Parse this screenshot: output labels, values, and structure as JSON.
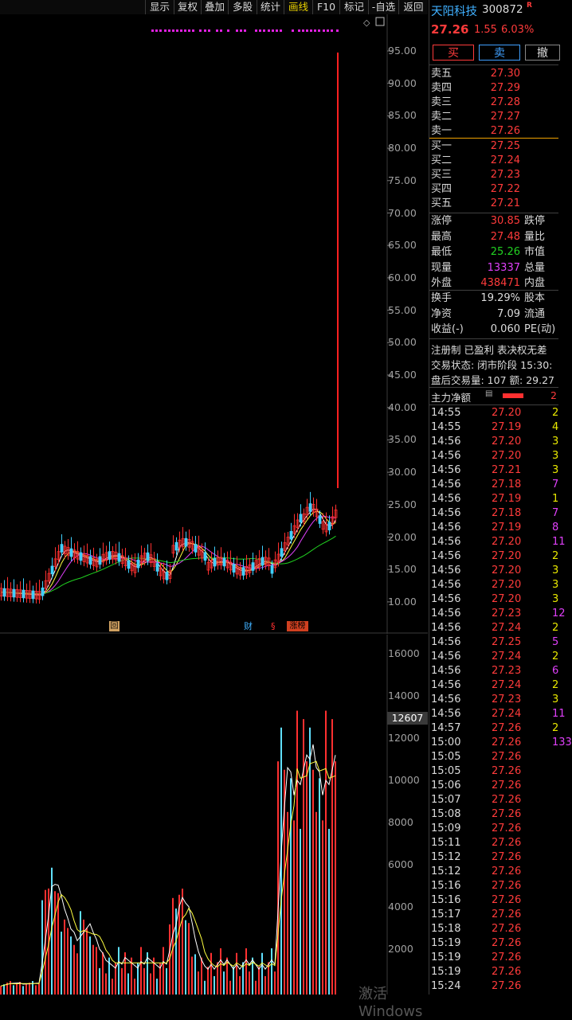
{
  "toolbar": {
    "buttons": [
      "显示",
      "复权",
      "叠加",
      "多股",
      "统计",
      "画线",
      "F10",
      "标记",
      "-自选",
      "返回"
    ]
  },
  "kline": {
    "yaxis": [
      "95.00",
      "90.00",
      "85.00",
      "80.00",
      "75.00",
      "70.00",
      "65.00",
      "60.00",
      "55.00",
      "50.00",
      "45.00",
      "40.00",
      "35.00",
      "30.00",
      "25.00",
      "20.00",
      "15.00",
      "10.00"
    ],
    "markers": {
      "hui": "回",
      "cai": "财",
      "s": "§",
      "zhangbang": "涨榜"
    }
  },
  "volume": {
    "yaxis": [
      "16000",
      "14000",
      "12000",
      "10000",
      "8000",
      "6000",
      "4000",
      "2000"
    ],
    "current_label": "12607"
  },
  "stock": {
    "name": "天阳科技",
    "code": "300872",
    "badge": "R",
    "price": "27.26",
    "change": "1.55",
    "change_pct": "6.03%"
  },
  "actions": {
    "buy": "买",
    "sell": "卖",
    "cancel": "撤"
  },
  "asks": [
    {
      "label": "卖五",
      "price": "27.30"
    },
    {
      "label": "卖四",
      "price": "27.29"
    },
    {
      "label": "卖三",
      "price": "27.28"
    },
    {
      "label": "卖二",
      "price": "27.27"
    },
    {
      "label": "卖一",
      "price": "27.26"
    }
  ],
  "bids": [
    {
      "label": "买一",
      "price": "27.25"
    },
    {
      "label": "买二",
      "price": "27.24"
    },
    {
      "label": "买三",
      "price": "27.23"
    },
    {
      "label": "买四",
      "price": "27.22"
    },
    {
      "label": "买五",
      "price": "27.21"
    }
  ],
  "stats1": [
    {
      "label": "涨停",
      "value": "30.85",
      "color": "red",
      "label2": "跌停"
    },
    {
      "label": "最高",
      "value": "27.48",
      "color": "red",
      "label2": "量比"
    },
    {
      "label": "最低",
      "value": "25.26",
      "color": "green",
      "label2": "市值"
    },
    {
      "label": "现量",
      "value": "13337",
      "color": "purple",
      "label2": "总量"
    },
    {
      "label": "外盘",
      "value": "438471",
      "color": "red",
      "label2": "内盘"
    }
  ],
  "stats2": [
    {
      "label": "换手",
      "value": "19.29%",
      "color": "white",
      "label2": "股本"
    },
    {
      "label": "净资",
      "value": "7.09",
      "color": "white",
      "label2": "流通"
    },
    {
      "label": "收益(-)",
      "value": "0.060",
      "color": "white",
      "label2": "PE(动)"
    }
  ],
  "info": {
    "line1": "注册制 已盈利 表决权无差",
    "line2": "交易状态: 闭市阶段 15:30:",
    "line3": "盘后交易量: 107  额: 29.27"
  },
  "main_flow": {
    "label": "主力净额",
    "value": "2"
  },
  "ticks": [
    {
      "time": "14:55",
      "price": "27.20",
      "vol": "2",
      "pc": "red",
      "vc": "yellow"
    },
    {
      "time": "14:55",
      "price": "27.19",
      "vol": "4",
      "pc": "red",
      "vc": "yellow"
    },
    {
      "time": "14:56",
      "price": "27.20",
      "vol": "3",
      "pc": "red",
      "vc": "yellow"
    },
    {
      "time": "14:56",
      "price": "27.20",
      "vol": "3",
      "pc": "red",
      "vc": "yellow"
    },
    {
      "time": "14:56",
      "price": "27.21",
      "vol": "3",
      "pc": "red",
      "vc": "yellow"
    },
    {
      "time": "14:56",
      "price": "27.18",
      "vol": "7",
      "pc": "red",
      "vc": "purple"
    },
    {
      "time": "14:56",
      "price": "27.19",
      "vol": "1",
      "pc": "red",
      "vc": "yellow"
    },
    {
      "time": "14:56",
      "price": "27.18",
      "vol": "7",
      "pc": "red",
      "vc": "purple"
    },
    {
      "time": "14:56",
      "price": "27.19",
      "vol": "8",
      "pc": "red",
      "vc": "purple"
    },
    {
      "time": "14:56",
      "price": "27.20",
      "vol": "11",
      "pc": "red",
      "vc": "purple"
    },
    {
      "time": "14:56",
      "price": "27.20",
      "vol": "2",
      "pc": "red",
      "vc": "yellow"
    },
    {
      "time": "14:56",
      "price": "27.20",
      "vol": "3",
      "pc": "red",
      "vc": "yellow"
    },
    {
      "time": "14:56",
      "price": "27.20",
      "vol": "3",
      "pc": "red",
      "vc": "yellow"
    },
    {
      "time": "14:56",
      "price": "27.20",
      "vol": "3",
      "pc": "red",
      "vc": "yellow"
    },
    {
      "time": "14:56",
      "price": "27.23",
      "vol": "12",
      "pc": "red",
      "vc": "purple"
    },
    {
      "time": "14:56",
      "price": "27.24",
      "vol": "2",
      "pc": "red",
      "vc": "yellow"
    },
    {
      "time": "14:56",
      "price": "27.25",
      "vol": "5",
      "pc": "red",
      "vc": "purple"
    },
    {
      "time": "14:56",
      "price": "27.24",
      "vol": "2",
      "pc": "red",
      "vc": "yellow"
    },
    {
      "time": "14:56",
      "price": "27.23",
      "vol": "6",
      "pc": "red",
      "vc": "purple"
    },
    {
      "time": "14:56",
      "price": "27.24",
      "vol": "2",
      "pc": "red",
      "vc": "yellow"
    },
    {
      "time": "14:56",
      "price": "27.23",
      "vol": "3",
      "pc": "red",
      "vc": "yellow"
    },
    {
      "time": "14:56",
      "price": "27.24",
      "vol": "11",
      "pc": "red",
      "vc": "purple"
    },
    {
      "time": "14:57",
      "price": "27.26",
      "vol": "2",
      "pc": "red",
      "vc": "yellow"
    },
    {
      "time": "15:00",
      "price": "27.26",
      "vol": "133",
      "pc": "red",
      "vc": "purple"
    },
    {
      "time": "15:05",
      "price": "27.26",
      "vol": "",
      "pc": "red",
      "vc": "yellow"
    },
    {
      "time": "15:05",
      "price": "27.26",
      "vol": "",
      "pc": "red",
      "vc": "yellow"
    },
    {
      "time": "15:06",
      "price": "27.26",
      "vol": "",
      "pc": "red",
      "vc": "yellow"
    },
    {
      "time": "15:07",
      "price": "27.26",
      "vol": "",
      "pc": "red",
      "vc": "yellow"
    },
    {
      "time": "15:08",
      "price": "27.26",
      "vol": "",
      "pc": "red",
      "vc": "yellow"
    },
    {
      "time": "15:09",
      "price": "27.26",
      "vol": "",
      "pc": "red",
      "vc": "yellow"
    },
    {
      "time": "15:11",
      "price": "27.26",
      "vol": "",
      "pc": "red",
      "vc": "yellow"
    },
    {
      "time": "15:12",
      "price": "27.26",
      "vol": "",
      "pc": "red",
      "vc": "yellow"
    },
    {
      "time": "15:12",
      "price": "27.26",
      "vol": "",
      "pc": "red",
      "vc": "yellow"
    },
    {
      "time": "15:16",
      "price": "27.26",
      "vol": "",
      "pc": "red",
      "vc": "yellow"
    },
    {
      "time": "15:16",
      "price": "27.26",
      "vol": "",
      "pc": "red",
      "vc": "yellow"
    },
    {
      "time": "15:17",
      "price": "27.26",
      "vol": "",
      "pc": "red",
      "vc": "yellow"
    },
    {
      "time": "15:18",
      "price": "27.26",
      "vol": "",
      "pc": "red",
      "vc": "yellow"
    },
    {
      "time": "15:19",
      "price": "27.26",
      "vol": "",
      "pc": "red",
      "vc": "yellow"
    },
    {
      "time": "15:19",
      "price": "27.26",
      "vol": "",
      "pc": "red",
      "vc": "yellow"
    },
    {
      "time": "15:19",
      "price": "27.26",
      "vol": "",
      "pc": "red",
      "vc": "yellow"
    },
    {
      "time": "15:24",
      "price": "27.26",
      "vol": "",
      "pc": "red",
      "vc": "yellow"
    }
  ],
  "watermark": "激活 Windows"
}
